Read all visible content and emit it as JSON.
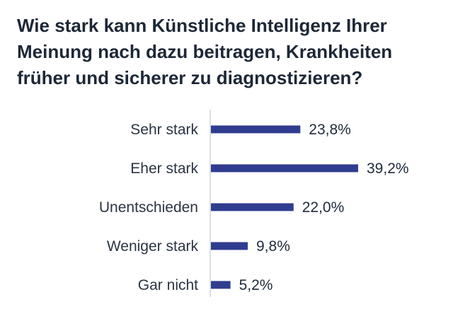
{
  "chart_data": {
    "type": "bar",
    "orientation": "horizontal",
    "title": "Wie stark kann Künstliche Intelligenz Ihrer Meinung nach dazu beitragen, Krankheiten früher und sicherer zu diagnostizieren?",
    "categories": [
      "Sehr stark",
      "Eher stark",
      "Unentschieden",
      "Weniger stark",
      "Gar nicht"
    ],
    "values": [
      23.8,
      39.2,
      22.0,
      9.8,
      5.2
    ],
    "value_labels": [
      "23,8%",
      "39,2%",
      "22,0%",
      "9,8%",
      "5,2%"
    ],
    "unit": "%",
    "xlim": [
      0,
      39.2
    ],
    "grid": false,
    "legend": "none",
    "colors": {
      "bar": "#2f3d8f",
      "axis": "#cfd3da"
    }
  }
}
